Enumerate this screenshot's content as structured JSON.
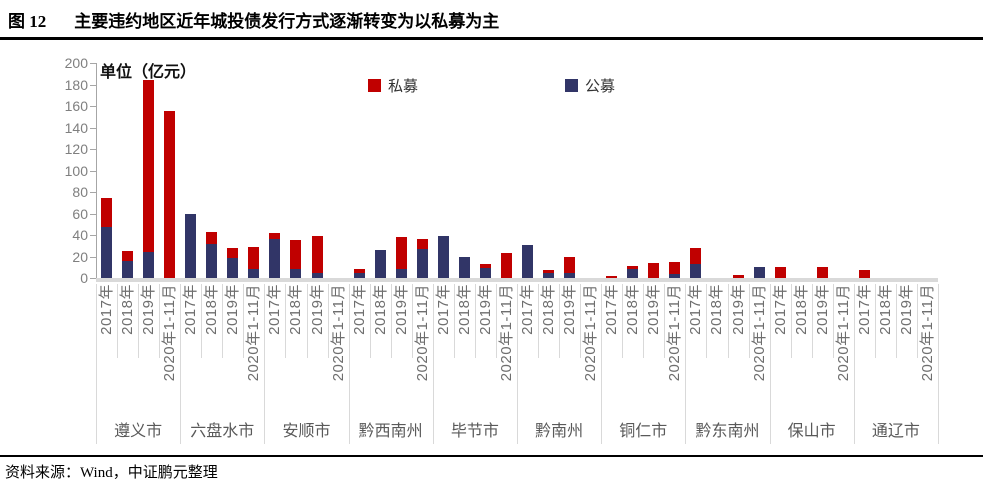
{
  "figure": {
    "label": "图 12",
    "title": "主要违约地区近年城投债发行方式逐渐转变为以私募为主"
  },
  "unit_label": "单位（亿元）",
  "legend": [
    {
      "label": "私募",
      "color": "#c00000"
    },
    {
      "label": "公募",
      "color": "#313567"
    }
  ],
  "source": "资料来源：Wind，中证鹏元整理",
  "chart_data": {
    "type": "bar",
    "stacked": true,
    "unit": "亿元",
    "title": "主要违约地区近年城投债发行方式逐渐转变为以私募为主",
    "groups": [
      "遵义市",
      "六盘水市",
      "安顺市",
      "黔西南州",
      "毕节市",
      "黔南州",
      "铜仁市",
      "黔东南州",
      "保山市",
      "通辽市"
    ],
    "sub_categories": [
      "2017年",
      "2018年",
      "2019年",
      "2020年1-11月"
    ],
    "series": [
      {
        "name": "公募",
        "color": "#313567",
        "values": [
          [
            47,
            16,
            24,
            0
          ],
          [
            60,
            32,
            19,
            8
          ],
          [
            36,
            8,
            5,
            0
          ],
          [
            5,
            26,
            8,
            27
          ],
          [
            39,
            20,
            9,
            0
          ],
          [
            31,
            5,
            5,
            0
          ],
          [
            0,
            8,
            0,
            4
          ],
          [
            13,
            0,
            0,
            10
          ],
          [
            0,
            0,
            0,
            0
          ],
          [
            0,
            0,
            0,
            0
          ]
        ]
      },
      {
        "name": "私募",
        "color": "#c00000",
        "values": [
          [
            27,
            9,
            160,
            155
          ],
          [
            0,
            11,
            9,
            21
          ],
          [
            6,
            27,
            34,
            0
          ],
          [
            3,
            0,
            30,
            9
          ],
          [
            0,
            0,
            4,
            23
          ],
          [
            0,
            2,
            15,
            0
          ],
          [
            2,
            3,
            14,
            11
          ],
          [
            15,
            0,
            3,
            0
          ],
          [
            10,
            0,
            10,
            0
          ],
          [
            7,
            0,
            0,
            0
          ]
        ]
      }
    ],
    "ylim": [
      0,
      200
    ],
    "yticks": [
      0,
      20,
      40,
      60,
      80,
      100,
      120,
      140,
      160,
      180,
      200
    ],
    "grid": false,
    "legend_position": "top-center"
  }
}
